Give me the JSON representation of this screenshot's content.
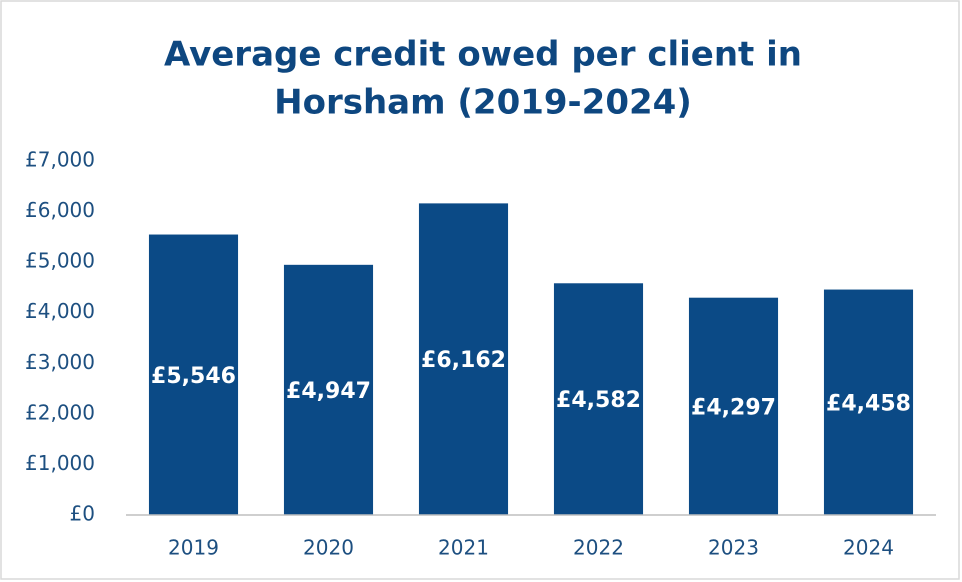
{
  "chart_data": {
    "type": "bar",
    "title_lines": [
      "Average credit owed per client in",
      "Horsham (2019-2024)"
    ],
    "categories": [
      "2019",
      "2020",
      "2021",
      "2022",
      "2023",
      "2024"
    ],
    "values": [
      5546,
      4947,
      6162,
      4582,
      4297,
      4458
    ],
    "value_labels": [
      "£5,546",
      "£4,947",
      "£6,162",
      "£4,582",
      "£4,297",
      "£4,458"
    ],
    "color": "#0b4a86",
    "ylim": [
      0,
      7000
    ],
    "yticks": [
      {
        "value": 0,
        "label": "£0"
      },
      {
        "value": 1000,
        "label": "£1,000"
      },
      {
        "value": 2000,
        "label": "£2,000"
      },
      {
        "value": 3000,
        "label": "£3,000"
      },
      {
        "value": 4000,
        "label": "£4,000"
      },
      {
        "value": 5000,
        "label": "£5,000"
      },
      {
        "value": 6000,
        "label": "£6,000"
      },
      {
        "value": 7000,
        "label": "£7,000"
      }
    ],
    "grid": false
  }
}
